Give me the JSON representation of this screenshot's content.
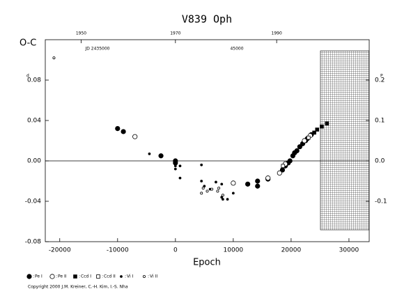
{
  "chart_data": {
    "type": "scatter",
    "title": "V839 Oph",
    "ylabel": "O-C",
    "xlabel": "Epoch",
    "y_unit": "d",
    "y2_unit": "P",
    "annotations": [
      "JD 2435000",
      "45000"
    ],
    "footnote": "Copyright 2000 J.M. Kreiner, C.-H. Kim, I.-S. Nha",
    "xlim": [
      -22500,
      33500
    ],
    "ylim": [
      -0.08,
      0.12
    ],
    "y2lim": [
      -0.2,
      0.3
    ],
    "xticks": [
      -20000,
      -10000,
      0,
      10000,
      20000,
      30000
    ],
    "yticks": [
      -0.08,
      -0.04,
      {
        "value": 0,
        "label": "0.00"
      },
      0.04,
      0.08
    ],
    "y2ticks": [
      -0.1,
      {
        "value": 0,
        "label": "0.0"
      },
      0.1,
      0.2
    ],
    "top_ticks": [
      {
        "value": -16300,
        "label": "1950"
      },
      {
        "value": 0,
        "label": "1970"
      },
      {
        "value": 17500,
        "label": "1990"
      }
    ],
    "reference_line": 0,
    "series": [
      {
        "name": "Pe I",
        "color": "#000000",
        "marker": "circle",
        "size": 3.2,
        "x": [
          -10000,
          -9000,
          -2500,
          0,
          0,
          12500,
          14200,
          14200,
          16000,
          18500,
          19000,
          19500,
          19800,
          20300,
          20600,
          21000,
          21500,
          22000,
          22500,
          22800,
          23500
        ],
        "values": [
          0.032,
          0.029,
          0.005,
          0.0,
          -0.002,
          -0.023,
          -0.025,
          -0.02,
          -0.018,
          -0.009,
          -0.005,
          -0.002,
          0.0,
          0.005,
          0.008,
          0.01,
          0.014,
          0.017,
          0.02,
          0.022,
          0.026
        ]
      },
      {
        "name": "Pe II",
        "color": "#000000",
        "marker": "circle-open",
        "size": 3.2,
        "x": [
          -7000,
          10000,
          16000,
          18000,
          19000,
          22300,
          23300
        ],
        "values": [
          0.024,
          -0.022,
          -0.017,
          -0.012,
          -0.003,
          0.02,
          0.025
        ]
      },
      {
        "name": "Ccd I",
        "color": "#000000",
        "marker": "square",
        "size": 2.4,
        "x": [
          24000,
          24500,
          25300,
          26200
        ],
        "values": [
          0.028,
          0.031,
          0.034,
          0.037
        ]
      },
      {
        "name": "Ccd II",
        "color": "#000000",
        "marker": "square-open",
        "size": 2.4,
        "x": [
          18600,
          23000
        ],
        "values": [
          -0.005,
          0.023
        ]
      },
      {
        "name": "Vi I",
        "color": "#000000",
        "marker": "circle",
        "size": 1.5,
        "x": [
          -4500,
          0,
          0,
          800,
          800,
          4500,
          4500,
          5000,
          6000,
          7000,
          8000,
          8000,
          8200,
          9000,
          10000
        ],
        "values": [
          0.007,
          -0.005,
          -0.008,
          -0.005,
          -0.017,
          -0.004,
          -0.02,
          -0.025,
          -0.028,
          -0.021,
          -0.023,
          -0.036,
          -0.038,
          -0.038,
          -0.032
        ]
      },
      {
        "name": "Vi II",
        "color": "#000000",
        "marker": "circle-open",
        "size": 1.6,
        "x": [
          -21000,
          4500,
          4800,
          5500,
          6300,
          7300,
          7500,
          8200
        ],
        "values": [
          0.102,
          -0.032,
          -0.027,
          -0.03,
          -0.028,
          -0.03,
          -0.027,
          -0.034
        ]
      }
    ]
  }
}
